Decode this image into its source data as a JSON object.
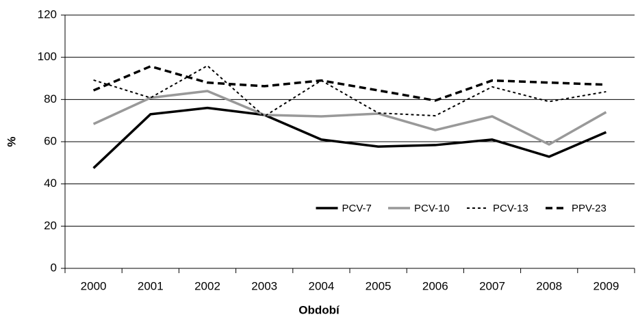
{
  "chart_data": {
    "type": "line",
    "x_label": "Období",
    "y_label": "%",
    "categories": [
      "2000",
      "2001",
      "2002",
      "2003",
      "2004",
      "2005",
      "2006",
      "2007",
      "2008",
      "2009"
    ],
    "series": [
      {
        "name": "PCV-7",
        "color": "#000000",
        "style": "solid",
        "values": [
          47.5,
          73,
          76,
          72.7,
          61,
          57.7,
          58.4,
          61,
          52.9,
          64.5
        ]
      },
      {
        "name": "PCV-10",
        "color": "#999999",
        "style": "solid",
        "values": [
          68.4,
          80.8,
          84,
          72.7,
          72,
          73.3,
          65.5,
          72,
          58.7,
          74
        ]
      },
      {
        "name": "PCV-13",
        "color": "#000000",
        "style": "dotted",
        "values": [
          89.2,
          80.8,
          96,
          72,
          89,
          73.6,
          72.3,
          86,
          79,
          83.7
        ]
      },
      {
        "name": "PPV-23",
        "color": "#000000",
        "style": "dashed",
        "values": [
          84.3,
          95.7,
          88,
          86.3,
          89,
          84.3,
          79.5,
          89,
          88,
          87
        ]
      }
    ],
    "ylim": [
      0,
      120
    ],
    "yticks": [
      0,
      20,
      40,
      60,
      80,
      100,
      120
    ],
    "grid": true,
    "legend": "lower right"
  }
}
